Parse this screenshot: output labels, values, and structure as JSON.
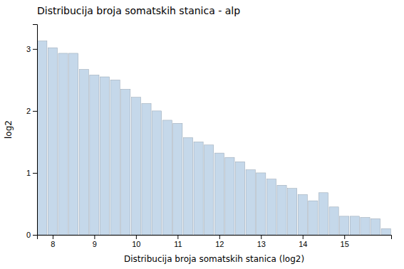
{
  "chart_data": {
    "type": "bar",
    "title": "Distribucija broja somatskih stanica - alp",
    "xlabel": "Distribucija broja somatskih stanica (log2)",
    "ylabel": "log2",
    "x": [
      7.75,
      8.0,
      8.25,
      8.5,
      8.75,
      9.0,
      9.25,
      9.5,
      9.75,
      10.0,
      10.25,
      10.5,
      10.75,
      11.0,
      11.25,
      11.5,
      11.75,
      12.0,
      12.25,
      12.5,
      12.75,
      13.0,
      13.25,
      13.5,
      13.75,
      14.0,
      14.25,
      14.5,
      14.75,
      15.0,
      15.25,
      15.5,
      15.75,
      16.0
    ],
    "values": [
      3.13,
      3.02,
      2.93,
      2.93,
      2.67,
      2.58,
      2.55,
      2.5,
      2.35,
      2.22,
      2.12,
      2.0,
      1.85,
      1.8,
      1.57,
      1.5,
      1.45,
      1.32,
      1.25,
      1.18,
      1.05,
      1.0,
      0.9,
      0.8,
      0.75,
      0.65,
      0.55,
      0.68,
      0.45,
      0.3,
      0.3,
      0.28,
      0.26,
      0.1
    ],
    "color": "#c5d8ea",
    "xlim": [
      7.625,
      16.125
    ],
    "ylim": [
      0,
      3.4
    ],
    "xticks": [
      8,
      9,
      10,
      11,
      12,
      13,
      14,
      15
    ],
    "yticks": [
      0,
      1,
      2,
      3
    ],
    "grid": false
  }
}
